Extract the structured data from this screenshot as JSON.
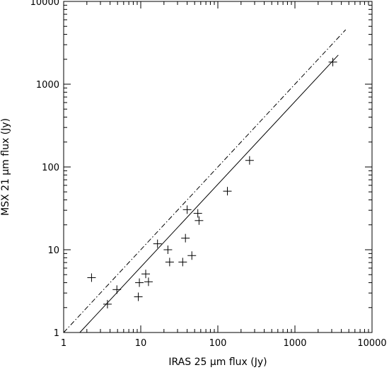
{
  "chart_data": {
    "type": "scatter",
    "x_scale": "log",
    "y_scale": "log",
    "xlim": [
      1,
      10000
    ],
    "ylim": [
      1,
      10000
    ],
    "xlabel": "IRAS 25 μm flux (Jy)",
    "ylabel": "MSX 21 μm flux (Jy)",
    "x_ticks": [
      1,
      10,
      100,
      1000,
      10000
    ],
    "y_ticks": [
      1,
      10,
      100,
      1000,
      10000
    ],
    "x_tick_labels": [
      "1",
      "10",
      "100",
      "1000",
      "10000"
    ],
    "y_tick_labels": [
      "1",
      "10",
      "100",
      "1000",
      "10000"
    ],
    "series": [
      {
        "marker": "plus",
        "color": "#000000",
        "points": [
          {
            "x": 2.3,
            "y": 4.6
          },
          {
            "x": 3.7,
            "y": 2.2
          },
          {
            "x": 4.9,
            "y": 3.3
          },
          {
            "x": 9.3,
            "y": 2.7
          },
          {
            "x": 9.6,
            "y": 4.0
          },
          {
            "x": 11.6,
            "y": 5.1
          },
          {
            "x": 12.6,
            "y": 4.1
          },
          {
            "x": 16.5,
            "y": 11.8
          },
          {
            "x": 22.5,
            "y": 10.0
          },
          {
            "x": 23.7,
            "y": 7.1
          },
          {
            "x": 35.0,
            "y": 7.1
          },
          {
            "x": 38.0,
            "y": 13.8
          },
          {
            "x": 40.0,
            "y": 30.5
          },
          {
            "x": 46.0,
            "y": 8.5
          },
          {
            "x": 55.0,
            "y": 27.5
          },
          {
            "x": 57.0,
            "y": 22.5
          },
          {
            "x": 133.0,
            "y": 51.0
          },
          {
            "x": 258.0,
            "y": 120.0
          },
          {
            "x": 3100.0,
            "y": 1850.0
          }
        ]
      }
    ],
    "lines": [
      {
        "style": "solid",
        "x": [
          1.62,
          3650
        ],
        "y": [
          1,
          2250
        ]
      },
      {
        "style": "dash-dot",
        "x": [
          1,
          4550
        ],
        "y": [
          1,
          4550
        ]
      }
    ]
  }
}
